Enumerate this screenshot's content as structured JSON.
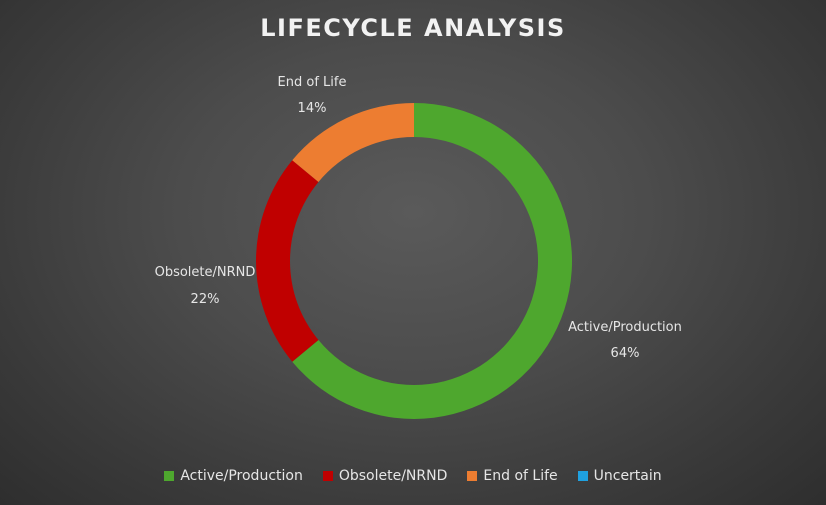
{
  "chart_data": {
    "type": "pie",
    "title": "LIFECYCLE ANALYSIS",
    "categories": [
      "Active/Production",
      "Obsolete/NRND",
      "End of Life",
      "Uncertain"
    ],
    "values": [
      64,
      22,
      14,
      0
    ],
    "labels": [
      "64%",
      "22%",
      "14%",
      "0%"
    ],
    "colors": [
      "#4ea72e",
      "#c00000",
      "#ed7d31",
      "#1fa1e0"
    ],
    "donut": true,
    "legend_position": "bottom"
  }
}
